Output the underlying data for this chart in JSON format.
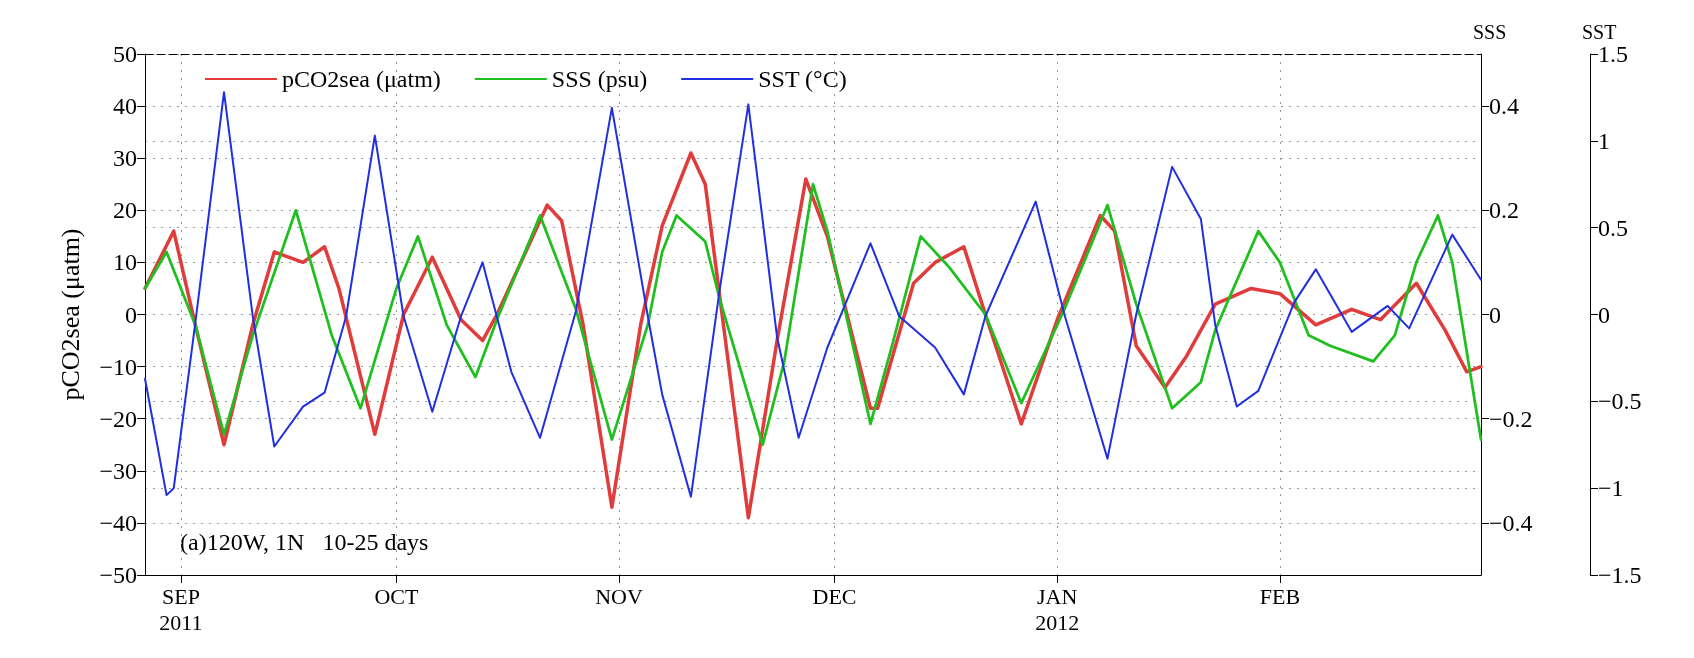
{
  "chart_data": {
    "type": "line",
    "ylabel": "pCO2sea (μatm)",
    "y2label": "SSS",
    "y3label": "SST",
    "annotations": [
      "(a)120W, 1N   10-25 days"
    ],
    "xlim": [
      "2011-08-27",
      "2012-02-29"
    ],
    "xticks": [
      {
        "value": "2011-09-01",
        "label": "SEP\n2011"
      },
      {
        "value": "2011-10-01",
        "label": "OCT"
      },
      {
        "value": "2011-11-01",
        "label": "NOV"
      },
      {
        "value": "2011-12-01",
        "label": "DEC"
      },
      {
        "value": "2012-01-01",
        "label": "JAN\n2012"
      },
      {
        "value": "2012-02-01",
        "label": "FEB"
      }
    ],
    "ylim": [
      -50,
      50
    ],
    "yticks": [
      -50,
      -40,
      -30,
      -20,
      -10,
      0,
      10,
      20,
      30,
      40,
      50
    ],
    "y2lim": [
      -0.5,
      0.5
    ],
    "y2ticks": [
      -0.4,
      -0.2,
      0,
      0.2,
      0.4
    ],
    "y3lim": [
      -1.5,
      1.5
    ],
    "y3ticks": [
      -1.5,
      -1,
      -0.5,
      0,
      0.5,
      1,
      1.5
    ],
    "grid": true,
    "legend": "top",
    "marker": "none",
    "line_style": "solid",
    "series": [
      {
        "name": "pCO2sea (μatm)",
        "color": "#e03c3c",
        "x": [
          "2011-08-27",
          "2011-08-31",
          "2011-09-03",
          "2011-09-07",
          "2011-09-11",
          "2011-09-14",
          "2011-09-18",
          "2011-09-21",
          "2011-09-23",
          "2011-09-28",
          "2011-10-02",
          "2011-10-06",
          "2011-10-10",
          "2011-10-13",
          "2011-10-15",
          "2011-10-22",
          "2011-10-24",
          "2011-10-27",
          "2011-10-31",
          "2011-11-04",
          "2011-11-07",
          "2011-11-11",
          "2011-11-13",
          "2011-11-19",
          "2011-11-23",
          "2011-11-27",
          "2011-11-30",
          "2011-12-06",
          "2011-12-07",
          "2011-12-12",
          "2011-12-15",
          "2011-12-19",
          "2011-12-22",
          "2011-12-27",
          "2012-01-01",
          "2012-01-07",
          "2012-01-09",
          "2012-01-12",
          "2012-01-16",
          "2012-01-19",
          "2012-01-23",
          "2012-01-28",
          "2012-02-01",
          "2012-02-06",
          "2012-02-11",
          "2012-02-15",
          "2012-02-20",
          "2012-02-24",
          "2012-02-27",
          "2012-02-29"
        ],
        "values": [
          5,
          16,
          -2,
          -25,
          -2,
          12,
          10,
          13,
          5,
          -23,
          0,
          11,
          -1,
          -5,
          0,
          21,
          18,
          -2,
          -37,
          -2,
          17,
          31,
          25,
          -39,
          -5,
          26,
          15,
          -18,
          -18,
          6,
          10,
          13,
          0,
          -21,
          -1,
          19,
          16,
          -6,
          -14,
          -8,
          2,
          5,
          4,
          -2,
          1,
          -1,
          6,
          -3,
          -11,
          -10
        ]
      },
      {
        "name": "SSS (psu)",
        "color": "#1fbf1f",
        "axis": "y2",
        "x": [
          "2011-08-27",
          "2011-08-30",
          "2011-09-03",
          "2011-09-07",
          "2011-09-11",
          "2011-09-17",
          "2011-09-22",
          "2011-09-26",
          "2011-10-01",
          "2011-10-04",
          "2011-10-08",
          "2011-10-12",
          "2011-10-15",
          "2011-10-21",
          "2011-10-26",
          "2011-10-31",
          "2011-11-05",
          "2011-11-07",
          "2011-11-09",
          "2011-11-13",
          "2011-11-15",
          "2011-11-21",
          "2011-11-24",
          "2011-11-28",
          "2011-11-30",
          "2011-12-06",
          "2011-12-09",
          "2011-12-13",
          "2011-12-17",
          "2011-12-22",
          "2011-12-27",
          "2012-01-02",
          "2012-01-08",
          "2012-01-12",
          "2012-01-17",
          "2012-01-21",
          "2012-01-23",
          "2012-01-29",
          "2012-02-01",
          "2012-02-05",
          "2012-02-08",
          "2012-02-14",
          "2012-02-17",
          "2012-02-20",
          "2012-02-23",
          "2012-02-25",
          "2012-02-29"
        ],
        "values": [
          0.05,
          0.12,
          -0.02,
          -0.23,
          -0.04,
          0.2,
          -0.04,
          -0.18,
          0.05,
          0.15,
          -0.02,
          -0.12,
          -0.01,
          0.19,
          0.01,
          -0.24,
          -0.02,
          0.12,
          0.19,
          0.14,
          0.03,
          -0.25,
          -0.09,
          0.25,
          0.16,
          -0.21,
          -0.06,
          0.15,
          0.09,
          0,
          -0.17,
          0.01,
          0.21,
          0.02,
          -0.18,
          -0.13,
          -0.03,
          0.16,
          0.1,
          -0.04,
          -0.06,
          -0.09,
          -0.04,
          0.1,
          0.19,
          0.1,
          -0.24
        ]
      },
      {
        "name": "SST (°C)",
        "color": "#2030e0",
        "axis": "y3",
        "x": [
          "2011-08-27",
          "2011-08-30",
          "2011-08-31",
          "2011-09-03",
          "2011-09-07",
          "2011-09-11",
          "2011-09-14",
          "2011-09-18",
          "2011-09-21",
          "2011-09-24",
          "2011-09-28",
          "2011-10-02",
          "2011-10-06",
          "2011-10-10",
          "2011-10-13",
          "2011-10-17",
          "2011-10-21",
          "2011-10-26",
          "2011-10-31",
          "2011-11-05",
          "2011-11-07",
          "2011-11-11",
          "2011-11-15",
          "2011-11-19",
          "2011-11-23",
          "2011-11-26",
          "2011-11-30",
          "2011-12-06",
          "2011-12-10",
          "2011-12-15",
          "2011-12-19",
          "2011-12-22",
          "2011-12-29",
          "2012-01-02",
          "2012-01-08",
          "2012-01-12",
          "2012-01-17",
          "2012-01-21",
          "2012-01-23",
          "2012-01-26",
          "2012-01-29",
          "2012-02-03",
          "2012-02-06",
          "2012-02-11",
          "2012-02-16",
          "2012-02-19",
          "2012-02-25",
          "2012-02-29"
        ],
        "values": [
          -0.37,
          -1.04,
          -1,
          -0.05,
          1.28,
          -0.01,
          -0.76,
          -0.53,
          -0.45,
          -0.01,
          1.03,
          -0.01,
          -0.56,
          -0.01,
          0.3,
          -0.33,
          -0.71,
          0.02,
          1.19,
          -0.01,
          -0.46,
          -1.05,
          0.14,
          1.21,
          -0.13,
          -0.71,
          -0.19,
          0.41,
          -0.01,
          -0.19,
          -0.46,
          -0.01,
          0.65,
          0,
          -0.83,
          0,
          0.85,
          0.55,
          -0.06,
          -0.53,
          -0.44,
          0.07,
          0.26,
          -0.1,
          0.05,
          -0.08,
          0.46,
          0.2
        ]
      }
    ]
  }
}
